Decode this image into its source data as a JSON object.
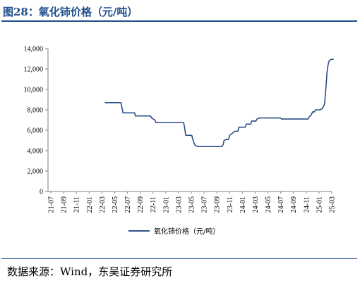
{
  "figure": {
    "title": "图28：氧化铈价格（元/吨）",
    "source": "数据来源：Wind，东吴证券研究所"
  },
  "chart_data": {
    "type": "line",
    "title": "",
    "xlabel": "",
    "ylabel": "",
    "ylim": [
      0,
      14000
    ],
    "yticks": [
      0,
      2000,
      4000,
      6000,
      8000,
      10000,
      12000,
      14000
    ],
    "ytick_labels": [
      "0",
      "2,000",
      "4,000",
      "6,000",
      "8,000",
      "10,000",
      "12,000",
      "14,000"
    ],
    "xlim": [
      "2021-07",
      "2025-03"
    ],
    "xtick_labels": [
      "21-07",
      "21-09",
      "21-11",
      "22-01",
      "22-03",
      "22-05",
      "22-07",
      "22-09",
      "22-11",
      "23-01",
      "23-03",
      "23-05",
      "23-07",
      "23-09",
      "23-11",
      "24-01",
      "24-03",
      "24-05",
      "24-07",
      "24-09",
      "24-11",
      "25-01",
      "25-03"
    ],
    "grid": false,
    "legend_position": "bottom",
    "colors": {
      "line": "#2b4f86",
      "axis": "#808080"
    },
    "series": [
      {
        "name": "氧化铈价格（元/吨）",
        "x": [
          "2022-03-15",
          "2022-06-01",
          "2022-06-03",
          "2022-06-08",
          "2022-06-10",
          "2022-08-05",
          "2022-08-08",
          "2022-10-20",
          "2022-10-25",
          "2022-11-10",
          "2022-11-15",
          "2023-02-20",
          "2023-03-25",
          "2023-03-28",
          "2023-04-05",
          "2023-05-03",
          "2023-05-10",
          "2023-05-15",
          "2023-05-20",
          "2023-06-01",
          "2023-07-01",
          "2023-08-01",
          "2023-09-01",
          "2023-09-25",
          "2023-10-01",
          "2023-10-05",
          "2023-10-15",
          "2023-10-25",
          "2023-10-28",
          "2023-11-01",
          "2023-11-20",
          "2023-11-25",
          "2023-12-10",
          "2023-12-15",
          "2024-01-15",
          "2024-01-20",
          "2024-02-10",
          "2024-02-15",
          "2024-03-05",
          "2024-03-10",
          "2024-03-20",
          "2024-04-01",
          "2024-05-01",
          "2024-06-01",
          "2024-07-01",
          "2024-07-05",
          "2024-08-01",
          "2024-09-01",
          "2024-10-01",
          "2024-11-01",
          "2024-11-10",
          "2024-11-15",
          "2024-11-25",
          "2024-12-01",
          "2024-12-10",
          "2024-12-15",
          "2025-01-01",
          "2025-01-05",
          "2025-01-15",
          "2025-01-22",
          "2025-01-28",
          "2025-02-01",
          "2025-02-05",
          "2025-02-08",
          "2025-02-11",
          "2025-02-13",
          "2025-02-15",
          "2025-02-17",
          "2025-02-20",
          "2025-02-24",
          "2025-03-01",
          "2025-03-10"
        ],
        "values": [
          8700,
          8700,
          8400,
          8000,
          7700,
          7700,
          7400,
          7400,
          7200,
          7000,
          6750,
          6750,
          6750,
          6500,
          5500,
          5500,
          5000,
          4700,
          4500,
          4400,
          4400,
          4400,
          4400,
          4400,
          4600,
          5000,
          5100,
          5100,
          5200,
          5500,
          5800,
          5900,
          5900,
          6300,
          6300,
          6600,
          6600,
          6900,
          6900,
          7100,
          7200,
          7200,
          7200,
          7200,
          7200,
          7100,
          7100,
          7100,
          7100,
          7100,
          7100,
          7300,
          7500,
          7800,
          7800,
          8000,
          8000,
          8000,
          8100,
          8300,
          8600,
          9500,
          10500,
          11500,
          12000,
          12300,
          12500,
          12700,
          12800,
          12900,
          12950,
          12950
        ]
      }
    ]
  }
}
